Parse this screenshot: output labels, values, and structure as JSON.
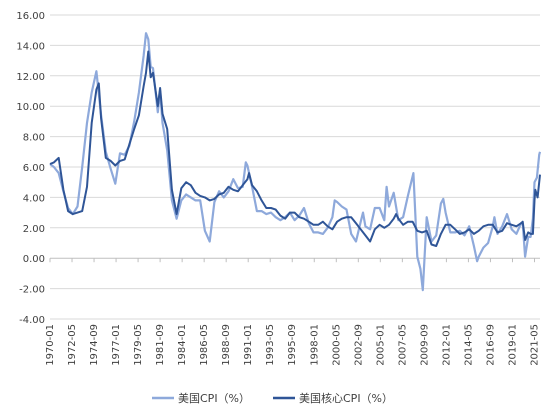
{
  "chart_data": {
    "type": "line",
    "title": "",
    "xlabel": "",
    "ylabel": "",
    "ylim": [
      -4,
      16
    ],
    "y_ticks": [
      "16.00",
      "14.00",
      "12.00",
      "10.00",
      "8.00",
      "6.00",
      "4.00",
      "2.00",
      "0.00",
      "-2.00",
      "-4.00"
    ],
    "x_tick_labels": [
      "1970-01",
      "1972-05",
      "1974-09",
      "1977-01",
      "1979-05",
      "1981-09",
      "1984-01",
      "1986-05",
      "1988-09",
      "1991-01",
      "1993-05",
      "1995-09",
      "1998-01",
      "2000-05",
      "2002-09",
      "2005-01",
      "2007-05",
      "2009-09",
      "2012-01",
      "2014-05",
      "2016-09",
      "2019-01",
      "2021-05"
    ],
    "legend_position": "bottom",
    "grid": "horizontal",
    "series": [
      {
        "name": "美国CPI（%）",
        "color": "#8EA9DB",
        "points": [
          [
            "1970-01",
            6.2
          ],
          [
            "1970-06",
            6.0
          ],
          [
            "1970-12",
            5.6
          ],
          [
            "1971-06",
            4.4
          ],
          [
            "1971-12",
            3.3
          ],
          [
            "1972-06",
            2.9
          ],
          [
            "1972-12",
            3.4
          ],
          [
            "1973-06",
            6.0
          ],
          [
            "1973-12",
            8.9
          ],
          [
            "1974-06",
            10.9
          ],
          [
            "1974-12",
            12.3
          ],
          [
            "1975-06",
            9.4
          ],
          [
            "1975-12",
            7.0
          ],
          [
            "1976-06",
            5.9
          ],
          [
            "1976-12",
            4.9
          ],
          [
            "1977-06",
            6.9
          ],
          [
            "1977-12",
            6.8
          ],
          [
            "1978-06",
            7.4
          ],
          [
            "1978-12",
            9.0
          ],
          [
            "1979-06",
            10.9
          ],
          [
            "1979-12",
            13.3
          ],
          [
            "1980-03",
            14.8
          ],
          [
            "1980-06",
            14.4
          ],
          [
            "1980-09",
            12.6
          ],
          [
            "1980-12",
            12.5
          ],
          [
            "1981-06",
            9.6
          ],
          [
            "1981-09",
            11.0
          ],
          [
            "1981-12",
            8.9
          ],
          [
            "1982-06",
            7.1
          ],
          [
            "1982-12",
            3.8
          ],
          [
            "1983-06",
            2.6
          ],
          [
            "1983-12",
            3.8
          ],
          [
            "1984-06",
            4.2
          ],
          [
            "1984-12",
            4.0
          ],
          [
            "1985-06",
            3.8
          ],
          [
            "1985-12",
            3.8
          ],
          [
            "1986-06",
            1.8
          ],
          [
            "1986-12",
            1.1
          ],
          [
            "1987-06",
            3.7
          ],
          [
            "1987-12",
            4.4
          ],
          [
            "1988-06",
            4.0
          ],
          [
            "1988-12",
            4.4
          ],
          [
            "1989-06",
            5.2
          ],
          [
            "1989-12",
            4.6
          ],
          [
            "1990-06",
            4.7
          ],
          [
            "1990-10",
            6.3
          ],
          [
            "1990-12",
            6.1
          ],
          [
            "1991-06",
            4.7
          ],
          [
            "1991-12",
            3.1
          ],
          [
            "1992-06",
            3.1
          ],
          [
            "1992-12",
            2.9
          ],
          [
            "1993-06",
            3.0
          ],
          [
            "1993-12",
            2.7
          ],
          [
            "1994-06",
            2.5
          ],
          [
            "1994-12",
            2.7
          ],
          [
            "1995-06",
            3.0
          ],
          [
            "1995-12",
            2.5
          ],
          [
            "1996-06",
            2.8
          ],
          [
            "1996-12",
            3.3
          ],
          [
            "1997-06",
            2.3
          ],
          [
            "1997-12",
            1.7
          ],
          [
            "1998-06",
            1.7
          ],
          [
            "1998-12",
            1.6
          ],
          [
            "1999-06",
            2.0
          ],
          [
            "1999-12",
            2.7
          ],
          [
            "2000-03",
            3.8
          ],
          [
            "2000-06",
            3.7
          ],
          [
            "2000-12",
            3.4
          ],
          [
            "2001-06",
            3.2
          ],
          [
            "2001-12",
            1.6
          ],
          [
            "2002-06",
            1.1
          ],
          [
            "2002-12",
            2.4
          ],
          [
            "2003-03",
            3.0
          ],
          [
            "2003-06",
            2.1
          ],
          [
            "2003-12",
            1.9
          ],
          [
            "2004-06",
            3.3
          ],
          [
            "2004-12",
            3.3
          ],
          [
            "2005-06",
            2.5
          ],
          [
            "2005-09",
            4.7
          ],
          [
            "2005-12",
            3.4
          ],
          [
            "2006-06",
            4.3
          ],
          [
            "2006-12",
            2.5
          ],
          [
            "2007-06",
            2.7
          ],
          [
            "2007-12",
            4.1
          ],
          [
            "2008-07",
            5.6
          ],
          [
            "2008-12",
            0.1
          ],
          [
            "2009-04",
            -0.7
          ],
          [
            "2009-07",
            -2.1
          ],
          [
            "2009-12",
            2.7
          ],
          [
            "2010-06",
            1.1
          ],
          [
            "2010-12",
            1.5
          ],
          [
            "2011-06",
            3.6
          ],
          [
            "2011-09",
            3.9
          ],
          [
            "2011-12",
            3.0
          ],
          [
            "2012-06",
            1.7
          ],
          [
            "2012-12",
            1.7
          ],
          [
            "2013-06",
            1.8
          ],
          [
            "2013-12",
            1.5
          ],
          [
            "2014-06",
            2.1
          ],
          [
            "2014-12",
            0.8
          ],
          [
            "2015-04",
            -0.2
          ],
          [
            "2015-06",
            0.1
          ],
          [
            "2015-12",
            0.7
          ],
          [
            "2016-06",
            1.0
          ],
          [
            "2016-12",
            2.1
          ],
          [
            "2017-02",
            2.7
          ],
          [
            "2017-06",
            1.6
          ],
          [
            "2017-12",
            2.1
          ],
          [
            "2018-06",
            2.9
          ],
          [
            "2018-12",
            1.9
          ],
          [
            "2019-06",
            1.6
          ],
          [
            "2019-12",
            2.3
          ],
          [
            "2020-02",
            2.3
          ],
          [
            "2020-05",
            0.1
          ],
          [
            "2020-09",
            1.4
          ],
          [
            "2020-12",
            1.4
          ],
          [
            "2021-03",
            2.6
          ],
          [
            "2021-05",
            5.0
          ],
          [
            "2021-08",
            5.3
          ],
          [
            "2021-11",
            6.8
          ],
          [
            "2021-12",
            7.0
          ]
        ]
      },
      {
        "name": "美国核心CPI（%）",
        "color": "#2F5597",
        "points": [
          [
            "1970-01",
            6.2
          ],
          [
            "1970-06",
            6.3
          ],
          [
            "1970-12",
            6.6
          ],
          [
            "1971-06",
            4.5
          ],
          [
            "1971-12",
            3.1
          ],
          [
            "1972-06",
            2.9
          ],
          [
            "1972-12",
            3.0
          ],
          [
            "1973-06",
            3.1
          ],
          [
            "1973-12",
            4.7
          ],
          [
            "1974-06",
            8.9
          ],
          [
            "1974-12",
            11.1
          ],
          [
            "1975-03",
            11.5
          ],
          [
            "1975-06",
            9.2
          ],
          [
            "1975-12",
            6.6
          ],
          [
            "1976-06",
            6.4
          ],
          [
            "1976-12",
            6.1
          ],
          [
            "1977-06",
            6.4
          ],
          [
            "1977-12",
            6.5
          ],
          [
            "1978-06",
            7.5
          ],
          [
            "1978-12",
            8.5
          ],
          [
            "1979-06",
            9.4
          ],
          [
            "1979-12",
            11.3
          ],
          [
            "1980-03",
            12.2
          ],
          [
            "1980-06",
            13.6
          ],
          [
            "1980-09",
            11.9
          ],
          [
            "1980-12",
            12.2
          ],
          [
            "1981-06",
            10.0
          ],
          [
            "1981-09",
            11.2
          ],
          [
            "1981-12",
            9.5
          ],
          [
            "1982-06",
            8.5
          ],
          [
            "1982-12",
            4.5
          ],
          [
            "1983-06",
            2.9
          ],
          [
            "1983-12",
            4.6
          ],
          [
            "1984-06",
            5.0
          ],
          [
            "1984-12",
            4.8
          ],
          [
            "1985-06",
            4.3
          ],
          [
            "1985-12",
            4.1
          ],
          [
            "1986-06",
            4.0
          ],
          [
            "1986-12",
            3.8
          ],
          [
            "1987-06",
            3.9
          ],
          [
            "1987-12",
            4.2
          ],
          [
            "1988-06",
            4.3
          ],
          [
            "1988-12",
            4.7
          ],
          [
            "1989-06",
            4.5
          ],
          [
            "1989-12",
            4.4
          ],
          [
            "1990-06",
            4.8
          ],
          [
            "1990-12",
            5.2
          ],
          [
            "1991-02",
            5.6
          ],
          [
            "1991-06",
            4.8
          ],
          [
            "1991-12",
            4.4
          ],
          [
            "1992-06",
            3.8
          ],
          [
            "1992-12",
            3.3
          ],
          [
            "1993-06",
            3.3
          ],
          [
            "1993-12",
            3.2
          ],
          [
            "1994-06",
            2.8
          ],
          [
            "1994-12",
            2.6
          ],
          [
            "1995-06",
            3.0
          ],
          [
            "1995-12",
            3.0
          ],
          [
            "1996-06",
            2.7
          ],
          [
            "1996-12",
            2.6
          ],
          [
            "1997-06",
            2.4
          ],
          [
            "1997-12",
            2.2
          ],
          [
            "1998-06",
            2.2
          ],
          [
            "1998-12",
            2.4
          ],
          [
            "1999-06",
            2.1
          ],
          [
            "1999-12",
            1.9
          ],
          [
            "2000-06",
            2.4
          ],
          [
            "2000-12",
            2.6
          ],
          [
            "2001-06",
            2.7
          ],
          [
            "2001-12",
            2.7
          ],
          [
            "2002-06",
            2.3
          ],
          [
            "2002-12",
            1.9
          ],
          [
            "2003-06",
            1.5
          ],
          [
            "2003-12",
            1.1
          ],
          [
            "2004-06",
            1.9
          ],
          [
            "2004-12",
            2.2
          ],
          [
            "2005-06",
            2.0
          ],
          [
            "2005-12",
            2.2
          ],
          [
            "2006-06",
            2.6
          ],
          [
            "2006-09",
            2.9
          ],
          [
            "2006-12",
            2.6
          ],
          [
            "2007-06",
            2.2
          ],
          [
            "2007-12",
            2.4
          ],
          [
            "2008-06",
            2.4
          ],
          [
            "2008-12",
            1.8
          ],
          [
            "2009-06",
            1.7
          ],
          [
            "2009-12",
            1.8
          ],
          [
            "2010-06",
            0.9
          ],
          [
            "2010-12",
            0.8
          ],
          [
            "2011-06",
            1.6
          ],
          [
            "2011-12",
            2.2
          ],
          [
            "2012-06",
            2.2
          ],
          [
            "2012-12",
            1.9
          ],
          [
            "2013-06",
            1.6
          ],
          [
            "2013-12",
            1.7
          ],
          [
            "2014-06",
            1.9
          ],
          [
            "2014-12",
            1.6
          ],
          [
            "2015-06",
            1.8
          ],
          [
            "2015-12",
            2.1
          ],
          [
            "2016-06",
            2.2
          ],
          [
            "2016-12",
            2.2
          ],
          [
            "2017-06",
            1.7
          ],
          [
            "2017-12",
            1.8
          ],
          [
            "2018-06",
            2.3
          ],
          [
            "2018-12",
            2.2
          ],
          [
            "2019-06",
            2.1
          ],
          [
            "2019-12",
            2.3
          ],
          [
            "2020-02",
            2.4
          ],
          [
            "2020-05",
            1.2
          ],
          [
            "2020-09",
            1.7
          ],
          [
            "2020-12",
            1.6
          ],
          [
            "2021-03",
            1.6
          ],
          [
            "2021-05",
            3.8
          ],
          [
            "2021-06",
            4.5
          ],
          [
            "2021-09",
            4.0
          ],
          [
            "2021-12",
            5.5
          ]
        ]
      }
    ]
  }
}
